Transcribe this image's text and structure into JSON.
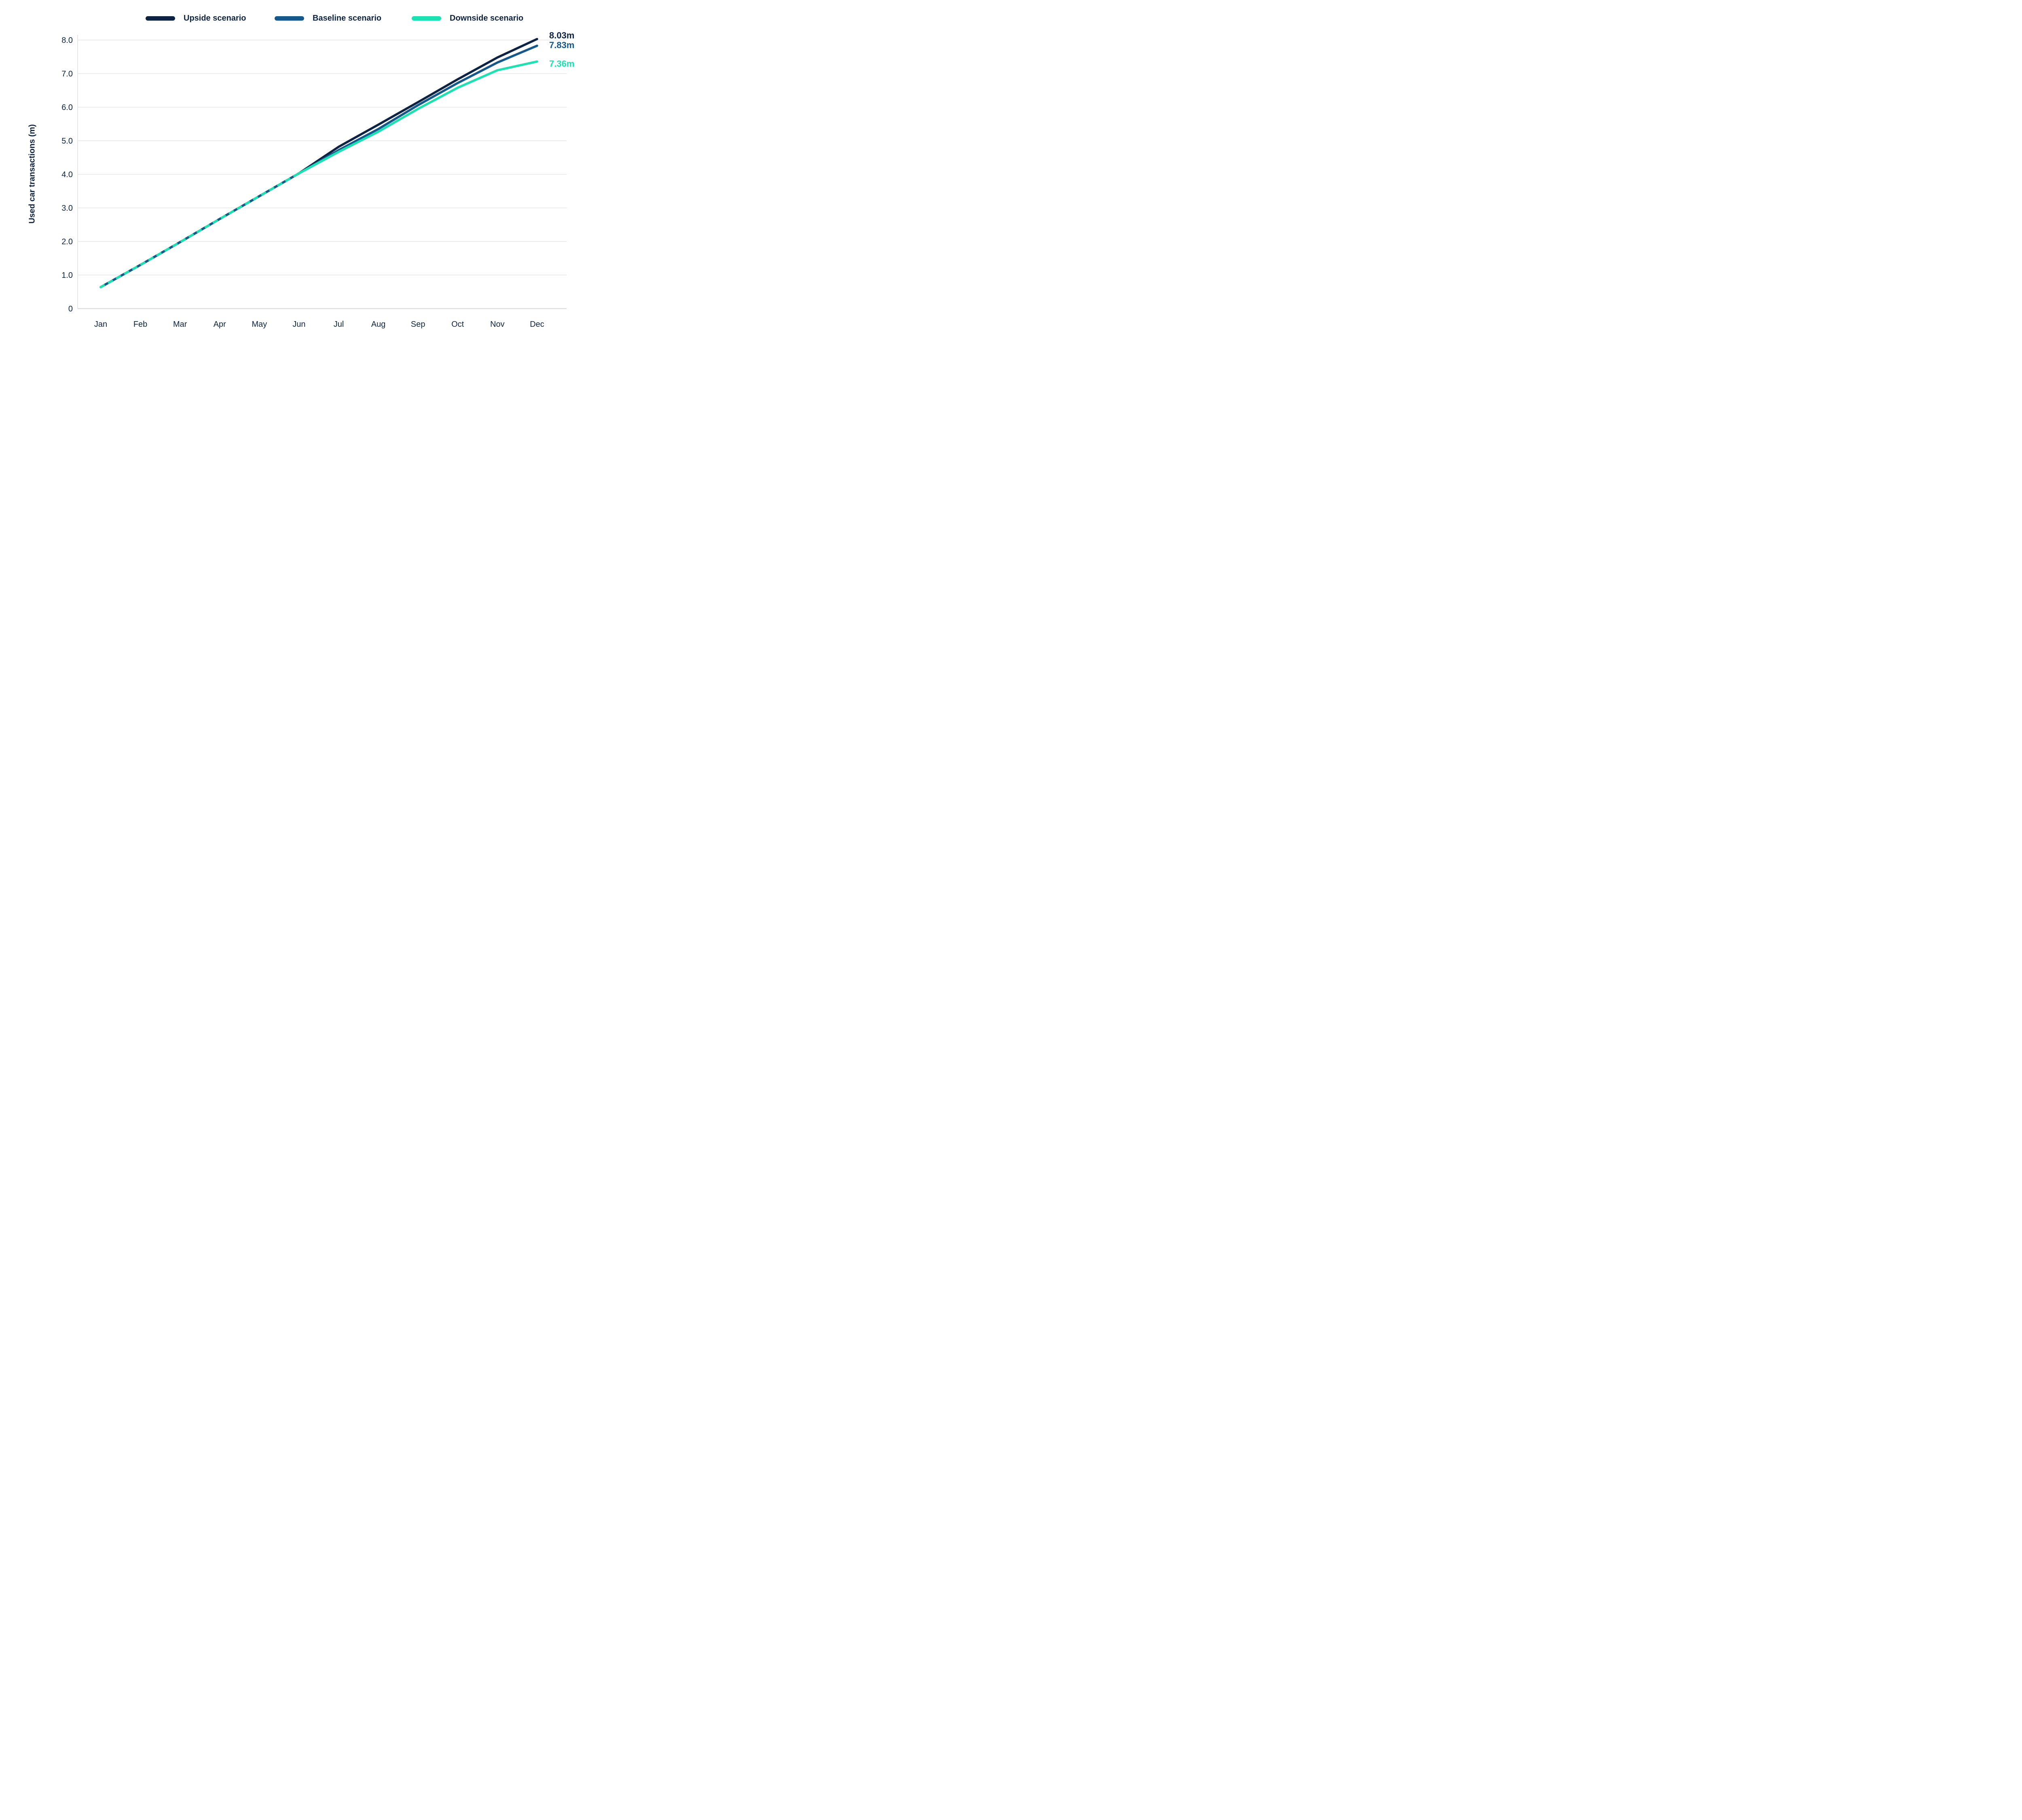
{
  "chart_data": {
    "type": "line",
    "title": "",
    "ylabel": "Used car transactions (m)",
    "xlabel": "",
    "ylim": [
      0,
      8
    ],
    "grid": "horizontal",
    "legend_position": "top",
    "categories": [
      "Jan",
      "Feb",
      "Mar",
      "Apr",
      "May",
      "Jun",
      "Jul",
      "Aug",
      "Sep",
      "Oct",
      "Nov",
      "Dec"
    ],
    "split_index": 5,
    "overlap_note": "Jan through Jun values are identical for all three scenarios and are drawn as one combined navy/blue/teal dashed line; scenarios diverge as solid lines after Jun",
    "y_ticks": [
      {
        "value": 0,
        "label": "0"
      },
      {
        "value": 1,
        "label": "1.0"
      },
      {
        "value": 2,
        "label": "2.0"
      },
      {
        "value": 3,
        "label": "3.0"
      },
      {
        "value": 4,
        "label": "4.0"
      },
      {
        "value": 5,
        "label": "5.0"
      },
      {
        "value": 6,
        "label": "6.0"
      },
      {
        "value": 7,
        "label": "7.0"
      },
      {
        "value": 8,
        "label": "8.0"
      }
    ],
    "series": [
      {
        "name": "Upside scenario",
        "color": "#0D2343",
        "values": [
          0.64,
          1.3,
          1.98,
          2.67,
          3.35,
          4.03,
          4.82,
          5.48,
          6.15,
          6.83,
          7.48,
          8.03
        ],
        "end_label": "8.03m"
      },
      {
        "name": "Baseline scenario",
        "color": "#15598C",
        "values": [
          0.64,
          1.3,
          1.98,
          2.67,
          3.35,
          4.03,
          4.72,
          5.35,
          6.06,
          6.72,
          7.33,
          7.83
        ],
        "end_label": "7.83m"
      },
      {
        "name": "Downside scenario",
        "color": "#1BE2B1",
        "values": [
          0.64,
          1.3,
          1.98,
          2.67,
          3.35,
          4.03,
          4.67,
          5.27,
          5.95,
          6.58,
          7.1,
          7.36
        ],
        "end_label": "7.36m"
      }
    ],
    "gridline_color": "#E6E6E6",
    "axis_line_color": "#DCDCDC"
  }
}
